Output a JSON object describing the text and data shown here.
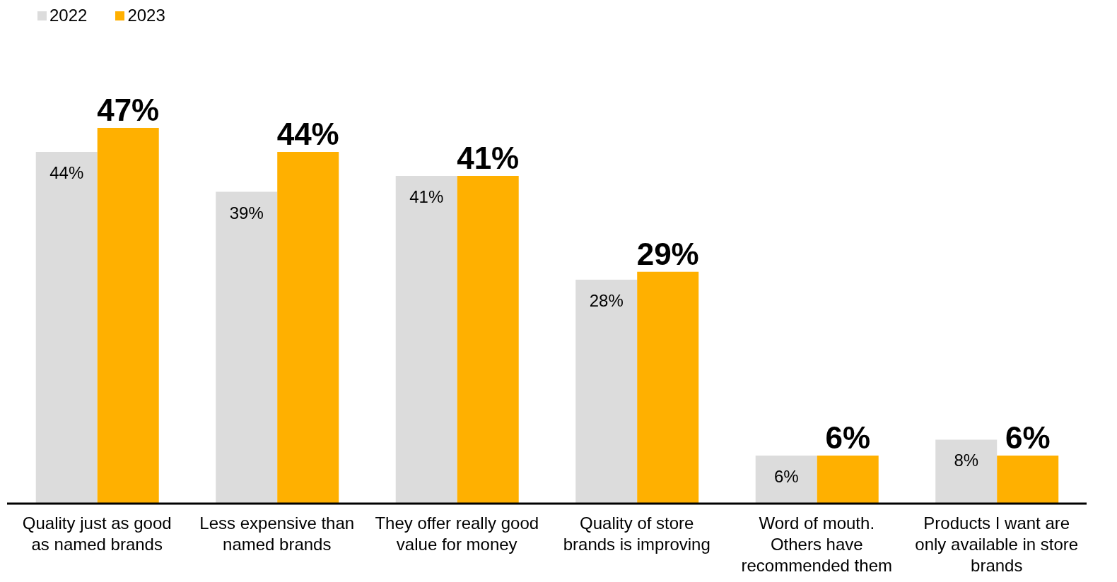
{
  "chart_data": {
    "type": "bar",
    "categories": [
      "Quality just as good as named brands",
      "Less expensive than named brands",
      "They offer really good value for money",
      "Quality of store brands is improving",
      "Word of mouth. Others have recommended them",
      "Products I want are only available in store brands"
    ],
    "series": [
      {
        "name": "2022",
        "color": "#dcdcdc",
        "values": [
          44,
          39,
          41,
          28,
          6,
          8
        ],
        "value_labels": [
          "44%",
          "39%",
          "41%",
          "28%",
          "6%",
          "8%"
        ]
      },
      {
        "name": "2023",
        "color": "#ffb000",
        "values": [
          47,
          44,
          41,
          29,
          6,
          6
        ],
        "value_labels": [
          "47%",
          "44%",
          "41%",
          "29%",
          "6%",
          "6%"
        ]
      }
    ],
    "legend": "top left"
  }
}
